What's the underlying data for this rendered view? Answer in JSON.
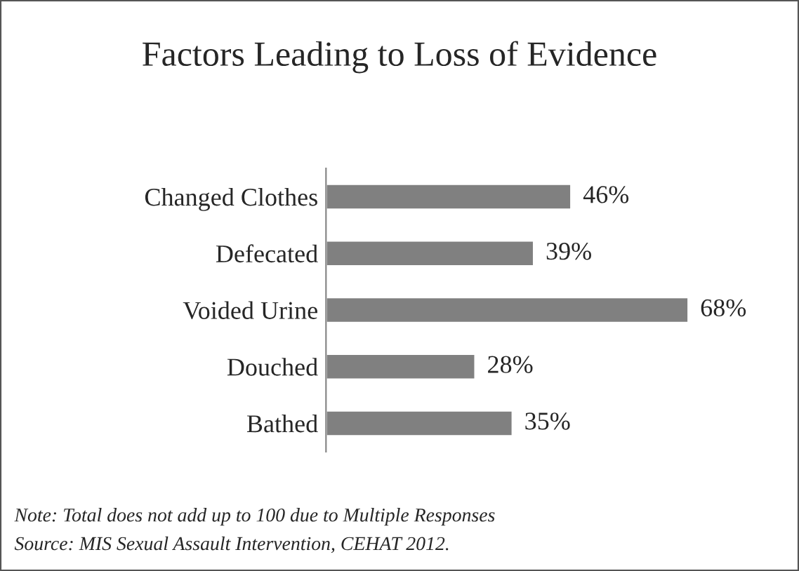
{
  "chart_data": {
    "type": "bar",
    "orientation": "horizontal",
    "title": "Factors Leading to Loss of Evidence",
    "categories": [
      "Changed Clothes",
      "Defecated",
      "Voided Urine",
      "Douched",
      "Bathed"
    ],
    "values": [
      46,
      39,
      68,
      28,
      35
    ],
    "value_labels": [
      "46%",
      "39%",
      "68%",
      "28%",
      "35%"
    ],
    "color": "#808080",
    "tick_labels": "y",
    "grid": false,
    "legend": false,
    "annotations": [
      "Note: Total does not add up to 100 due to Multiple Responses",
      "Source: MIS Sexual Assault Intervention, CEHAT 2012."
    ]
  }
}
